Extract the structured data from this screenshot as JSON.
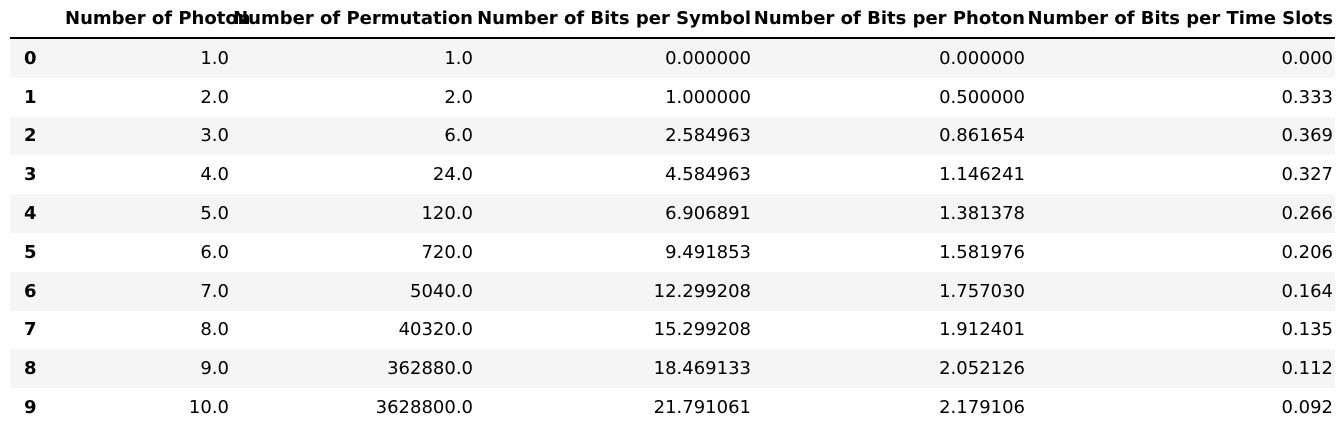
{
  "table": {
    "columns": [
      "",
      "Number of Photon",
      "Number of Permutation",
      "Number of Bits per Symbol",
      "Number of Bits per Photon",
      "Number of Bits per Time Slots"
    ],
    "rows": [
      {
        "index": "0",
        "cells": [
          "1.0",
          "1.0",
          "0.000000",
          "0.000000",
          "0.000"
        ]
      },
      {
        "index": "1",
        "cells": [
          "2.0",
          "2.0",
          "1.000000",
          "0.500000",
          "0.333"
        ]
      },
      {
        "index": "2",
        "cells": [
          "3.0",
          "6.0",
          "2.584963",
          "0.861654",
          "0.369"
        ]
      },
      {
        "index": "3",
        "cells": [
          "4.0",
          "24.0",
          "4.584963",
          "1.146241",
          "0.327"
        ]
      },
      {
        "index": "4",
        "cells": [
          "5.0",
          "120.0",
          "6.906891",
          "1.381378",
          "0.266"
        ]
      },
      {
        "index": "5",
        "cells": [
          "6.0",
          "720.0",
          "9.491853",
          "1.581976",
          "0.206"
        ]
      },
      {
        "index": "6",
        "cells": [
          "7.0",
          "5040.0",
          "12.299208",
          "1.757030",
          "0.164"
        ]
      },
      {
        "index": "7",
        "cells": [
          "8.0",
          "40320.0",
          "15.299208",
          "1.912401",
          "0.135"
        ]
      },
      {
        "index": "8",
        "cells": [
          "9.0",
          "362880.0",
          "18.469133",
          "2.052126",
          "0.112"
        ]
      },
      {
        "index": "9",
        "cells": [
          "10.0",
          "3628800.0",
          "21.791061",
          "2.179106",
          "0.092"
        ]
      }
    ]
  },
  "colors": {
    "stripe": "#f5f5f5",
    "background": "#ffffff",
    "text": "#000000",
    "header_rule": "#000000"
  }
}
